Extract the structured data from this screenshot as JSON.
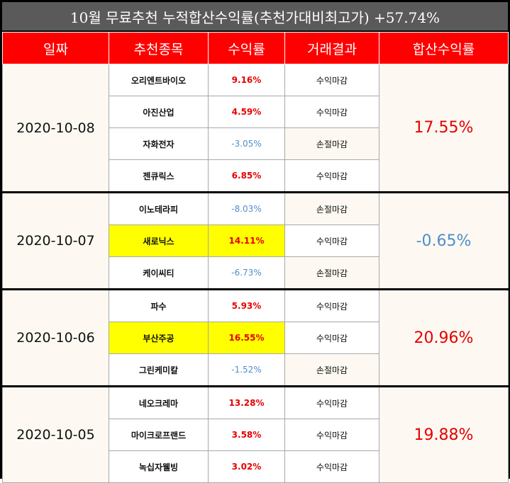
{
  "title": "10월 무료추천 누적합산수익률(추천가대비최고가) +57.74%",
  "headers": [
    "일짜",
    "추천종목",
    "수익률",
    "거래결과",
    "합산수익률"
  ],
  "groups": [
    {
      "date": "2020-10-08",
      "total": "17.55%",
      "total_sign": "pos",
      "rows": [
        {
          "name": "오리엔트바이오",
          "rate": "9.16%",
          "sign": "pos",
          "result": "수익마감",
          "hl": false
        },
        {
          "name": "아진산업",
          "rate": "4.59%",
          "sign": "pos",
          "result": "수익마감",
          "hl": false
        },
        {
          "name": "자화전자",
          "rate": "-3.05%",
          "sign": "neg",
          "result": "손절마감",
          "hl": false
        },
        {
          "name": "젠큐릭스",
          "rate": "6.85%",
          "sign": "pos",
          "result": "수익마감",
          "hl": false
        }
      ]
    },
    {
      "date": "2020-10-07",
      "total": "-0.65%",
      "total_sign": "neg",
      "rows": [
        {
          "name": "이노테라피",
          "rate": "-8.03%",
          "sign": "neg",
          "result": "손절마감",
          "hl": false
        },
        {
          "name": "새로닉스",
          "rate": "14.11%",
          "sign": "pos",
          "result": "수익마감",
          "hl": true
        },
        {
          "name": "케이씨티",
          "rate": "-6.73%",
          "sign": "neg",
          "result": "손절마감",
          "hl": false
        }
      ]
    },
    {
      "date": "2020-10-06",
      "total": "20.96%",
      "total_sign": "pos",
      "rows": [
        {
          "name": "파수",
          "rate": "5.93%",
          "sign": "pos",
          "result": "수익마감",
          "hl": false
        },
        {
          "name": "부산주공",
          "rate": "16.55%",
          "sign": "pos",
          "result": "수익마감",
          "hl": true
        },
        {
          "name": "그린케미칼",
          "rate": "-1.52%",
          "sign": "neg",
          "result": "손절마감",
          "hl": false
        }
      ]
    },
    {
      "date": "2020-10-05",
      "total": "19.88%",
      "total_sign": "pos",
      "rows": [
        {
          "name": "네오크레마",
          "rate": "13.28%",
          "sign": "pos",
          "result": "수익마감",
          "hl": false
        },
        {
          "name": "마이크로프랜드",
          "rate": "3.58%",
          "sign": "pos",
          "result": "수익마감",
          "hl": false
        },
        {
          "name": "녹십자웰빙",
          "rate": "3.02%",
          "sign": "pos",
          "result": "수익마감",
          "hl": false
        }
      ]
    }
  ],
  "colors": {
    "header_bg": "#ff0000",
    "positive": "#e60000",
    "negative": "#4f8ec9",
    "highlight": "#ffff00",
    "title_bg": "#5a5a5a"
  }
}
